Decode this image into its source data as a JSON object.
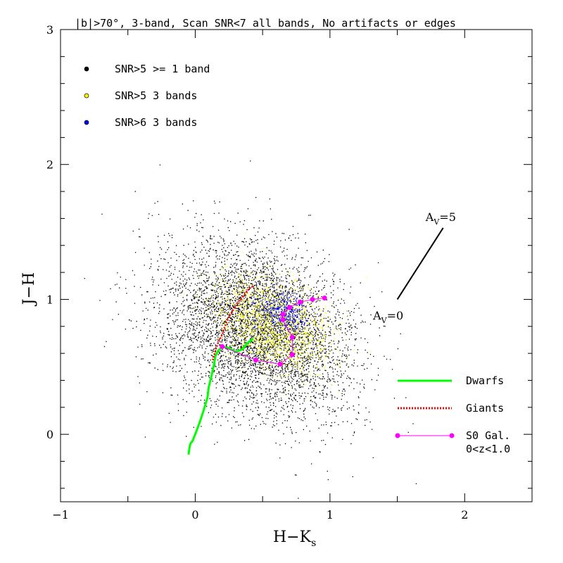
{
  "chart_data": {
    "type": "scatter",
    "title": "|b|>70°, 3-band, Scan SNR<7 all bands, No artifacts or edges",
    "xlabel": "H−K",
    "xlabel_sub": "s",
    "ylabel": "J−H",
    "xlim": [
      -1,
      2.5
    ],
    "ylim": [
      -0.5,
      3
    ],
    "x_ticks": [
      -1,
      0,
      1,
      2
    ],
    "y_ticks": [
      0,
      1,
      2,
      3
    ],
    "x_tick_labels": [
      "−1",
      "0",
      "1",
      "2"
    ],
    "y_tick_labels": [
      "0",
      "1",
      "2",
      "3"
    ],
    "scatter_clouds": [
      {
        "name": "SNR>5 >= 1 band",
        "color": "#000000",
        "center": [
          0.45,
          0.78
        ],
        "spread": [
          0.38,
          0.28
        ],
        "rotation_deg": -35
      },
      {
        "name": "SNR>5 3 bands",
        "color": "#ffff00",
        "center": [
          0.58,
          0.82
        ],
        "spread": [
          0.22,
          0.15
        ],
        "rotation_deg": -30
      },
      {
        "name": "SNR>6 3 bands",
        "color": "#0000ff",
        "center": [
          0.65,
          0.9
        ],
        "spread": [
          0.1,
          0.08
        ],
        "rotation_deg": -20
      }
    ],
    "series": [
      {
        "name": "Dwarfs",
        "color": "#00ff00",
        "points": [
          [
            -0.05,
            -0.15
          ],
          [
            -0.04,
            -0.08
          ],
          [
            -0.03,
            -0.06
          ],
          [
            -0.02,
            -0.05
          ],
          [
            0.0,
            0.0
          ],
          [
            0.03,
            0.08
          ],
          [
            0.06,
            0.17
          ],
          [
            0.09,
            0.27
          ],
          [
            0.1,
            0.35
          ],
          [
            0.12,
            0.43
          ],
          [
            0.14,
            0.52
          ],
          [
            0.15,
            0.58
          ],
          [
            0.17,
            0.62
          ],
          [
            0.2,
            0.65
          ],
          [
            0.25,
            0.64
          ],
          [
            0.3,
            0.61
          ],
          [
            0.35,
            0.63
          ],
          [
            0.38,
            0.67
          ],
          [
            0.43,
            0.71
          ]
        ]
      },
      {
        "name": "Giants",
        "color": "#ff0000",
        "points": [
          [
            0.13,
            0.55
          ],
          [
            0.15,
            0.62
          ],
          [
            0.17,
            0.68
          ],
          [
            0.2,
            0.74
          ],
          [
            0.22,
            0.8
          ],
          [
            0.25,
            0.87
          ],
          [
            0.28,
            0.92
          ],
          [
            0.32,
            0.98
          ],
          [
            0.36,
            1.03
          ],
          [
            0.4,
            1.08
          ],
          [
            0.43,
            1.1
          ]
        ]
      },
      {
        "name": "S0 Gal. 0<z<1.0",
        "color": "#ff00ff",
        "points": [
          [
            0.2,
            0.65
          ],
          [
            0.45,
            0.55
          ],
          [
            0.63,
            0.52
          ],
          [
            0.72,
            0.59
          ],
          [
            0.72,
            0.72
          ],
          [
            0.65,
            0.85
          ],
          [
            0.65,
            0.89
          ],
          [
            0.7,
            0.94
          ],
          [
            0.78,
            0.98
          ],
          [
            0.87,
            1.0
          ],
          [
            0.96,
            1.01
          ]
        ]
      },
      {
        "name": "Av vector",
        "color": "#000000",
        "points": [
          [
            1.5,
            1.0
          ],
          [
            1.84,
            1.53
          ]
        ]
      }
    ],
    "annotations": [
      {
        "text": "A",
        "sub": "V",
        "suffix": "=5",
        "at": [
          1.71,
          1.58
        ]
      },
      {
        "text": "A",
        "sub": "V",
        "suffix": "=0",
        "at": [
          1.32,
          0.85
        ]
      }
    ],
    "legend_top": [
      {
        "label": "SNR>5 >= 1 band",
        "color": "#000000"
      },
      {
        "label": "SNR>5 3 bands",
        "color": "#ffff00"
      },
      {
        "label": "SNR>6 3 bands",
        "color": "#0000ff"
      }
    ],
    "legend_bottom": [
      {
        "label": "Dwarfs",
        "color": "#00ff00",
        "style": "solid"
      },
      {
        "label": "Giants",
        "color": "#ff0000",
        "style": "dotted"
      },
      {
        "label": "S0 Gal.",
        "label2": "0<z<1.0",
        "color": "#ff00ff",
        "style": "line-markers"
      }
    ]
  }
}
